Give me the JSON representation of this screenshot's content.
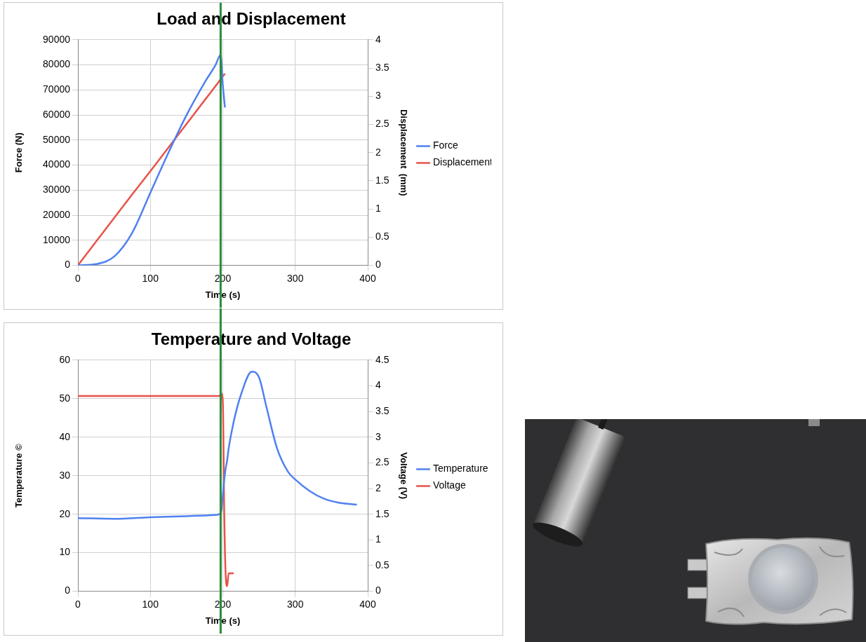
{
  "chart_data": [
    {
      "type": "line",
      "title": "Load and Displacement",
      "x_label": "Time (s)",
      "y_label": "Force (N)",
      "y2_label": "Displacement  (mm)",
      "x": [
        0,
        25,
        50,
        75,
        100,
        125,
        150,
        175,
        190,
        197,
        200,
        203
      ],
      "series": [
        {
          "name": "Force",
          "color": "#4f81f0",
          "values": [
            0,
            500,
            3500,
            13000,
            29000,
            45000,
            60000,
            73000,
            80000,
            84000,
            72000,
            63000
          ]
        },
        {
          "name": "Displacement",
          "color": "#e8524a",
          "axis": "y2",
          "values": [
            0,
            0.42,
            0.84,
            1.26,
            1.67,
            2.09,
            2.51,
            2.93,
            3.18,
            3.3,
            3.35,
            3.4
          ]
        }
      ],
      "xlim": [
        0,
        400
      ],
      "xticks": [
        0,
        100,
        200,
        300,
        400
      ],
      "ylim": [
        0,
        90000
      ],
      "yticks": [
        0,
        10000,
        20000,
        30000,
        40000,
        50000,
        60000,
        70000,
        80000,
        90000
      ],
      "y2lim": [
        0,
        4
      ],
      "y2ticks": [
        0,
        0.5,
        1,
        1.5,
        2,
        2.5,
        3,
        3.5,
        4
      ],
      "grid": true,
      "legend": "right",
      "vline_x": 197
    },
    {
      "type": "line",
      "title": "Temperature and Voltage",
      "x_label": "Time (s)",
      "y_label": "Temperature ©",
      "y2_label": "Voltage (V)",
      "x": [
        0,
        50,
        100,
        150,
        190,
        195,
        198,
        200,
        202,
        204,
        206,
        208,
        215,
        225,
        240,
        250,
        260,
        275,
        290,
        300,
        320,
        340,
        360,
        385
      ],
      "series": [
        {
          "name": "Temperature",
          "color": "#4f81f0",
          "values": [
            19,
            18.8,
            19.2,
            19.5,
            19.8,
            20,
            21,
            25,
            29,
            32,
            34,
            37,
            44,
            51,
            57,
            55.5,
            48,
            37,
            31,
            29,
            26,
            24,
            23,
            22.5
          ]
        },
        {
          "name": "Voltage",
          "color": "#e8524a",
          "axis": "y2",
          "values": [
            3.8,
            3.8,
            3.8,
            3.8,
            3.8,
            3.8,
            3.85,
            3.7,
            1.5,
            0.3,
            0.1,
            0.35,
            0.35,
            null,
            null,
            null,
            null,
            null,
            null,
            null,
            null,
            null,
            null,
            null
          ]
        }
      ],
      "xlim": [
        0,
        400
      ],
      "xticks": [
        0,
        100,
        200,
        300,
        400
      ],
      "ylim": [
        0,
        60
      ],
      "yticks": [
        0,
        10,
        20,
        30,
        40,
        50,
        60
      ],
      "y2lim": [
        0,
        4.5
      ],
      "y2ticks": [
        0,
        0.5,
        1,
        1.5,
        2,
        2.5,
        3,
        3.5,
        4,
        4.5
      ],
      "grid": true,
      "legend": "right",
      "vline_x": 197
    }
  ]
}
